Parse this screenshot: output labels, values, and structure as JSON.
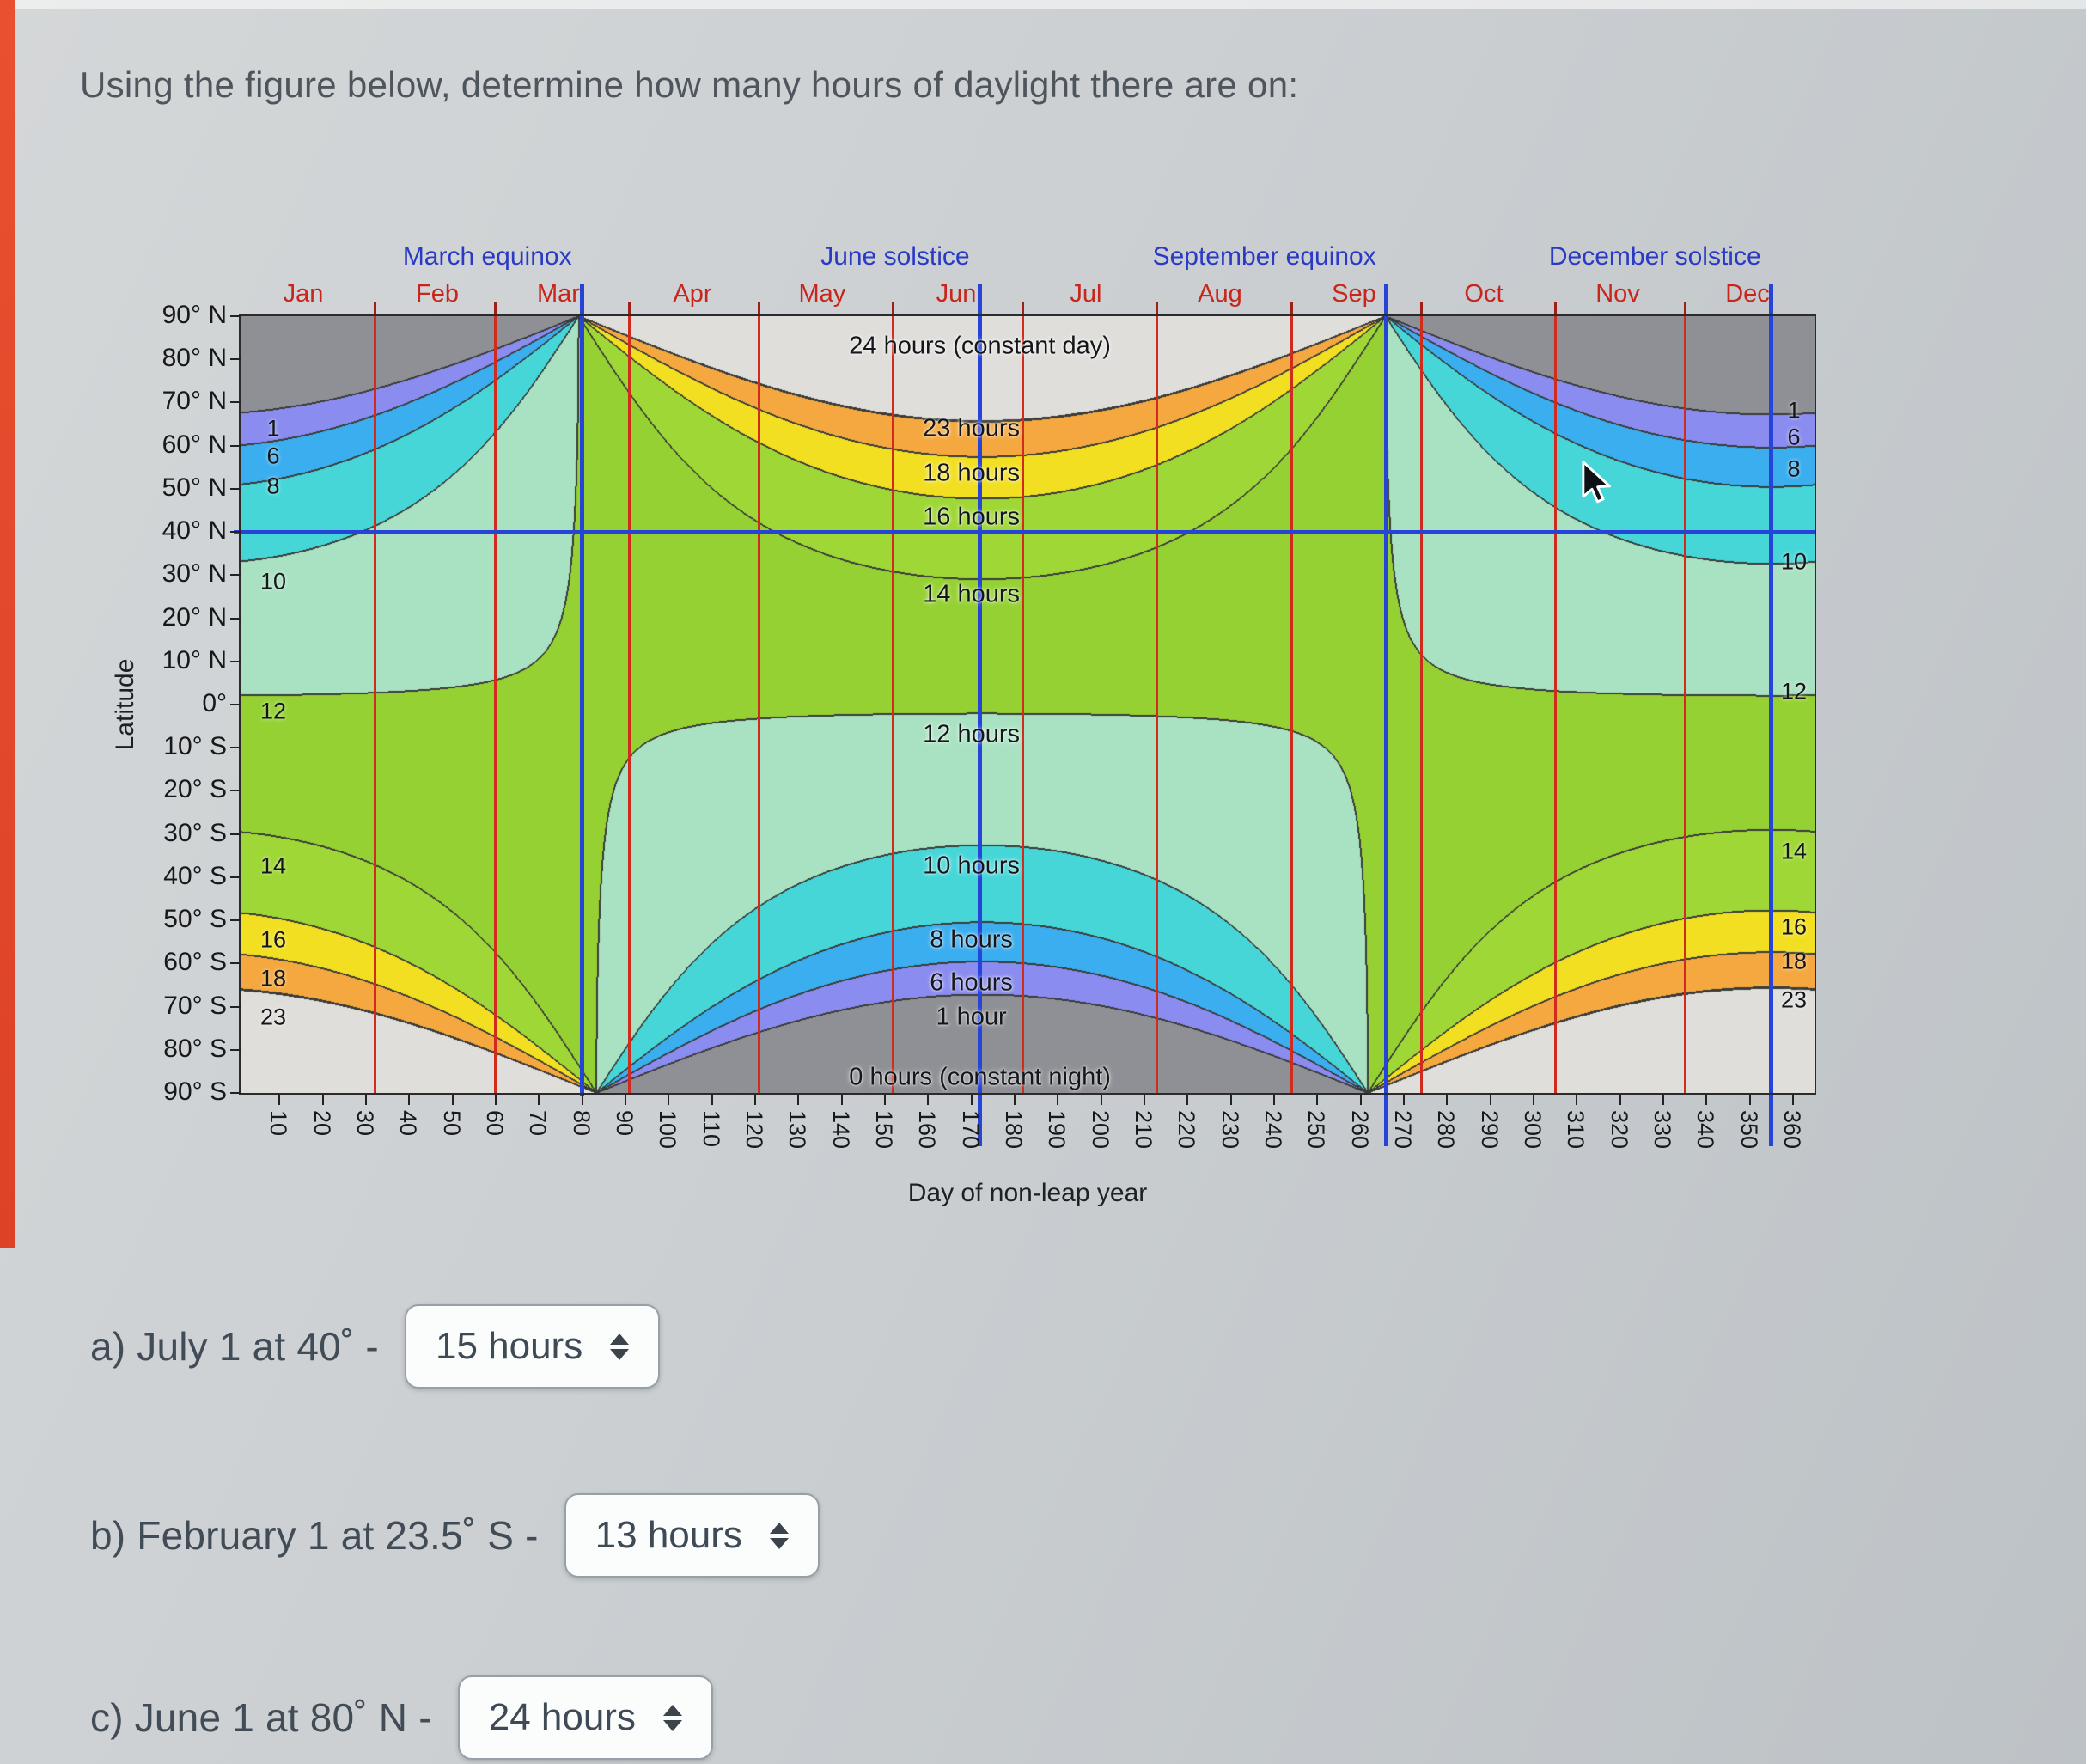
{
  "page": {
    "title": "Using the figure below, determine how many hours of daylight there are on:"
  },
  "chart": {
    "xlabel": "Day of non-leap year",
    "ylabel": "Latitude",
    "season_events": [
      {
        "label": "March equinox",
        "day": 80,
        "extend_below": false
      },
      {
        "label": "June solstice",
        "day": 172,
        "extend_below": true
      },
      {
        "label": "September equinox",
        "day": 266,
        "extend_below": true
      },
      {
        "label": "December solstice",
        "day": 355,
        "extend_below": true
      }
    ],
    "months": [
      {
        "label": "Jan",
        "start_day": 1
      },
      {
        "label": "Feb",
        "start_day": 32
      },
      {
        "label": "Mar",
        "start_day": 60
      },
      {
        "label": "Apr",
        "start_day": 91
      },
      {
        "label": "May",
        "start_day": 121
      },
      {
        "label": "Jun",
        "start_day": 152
      },
      {
        "label": "Jul",
        "start_day": 182
      },
      {
        "label": "Aug",
        "start_day": 213
      },
      {
        "label": "Sep",
        "start_day": 244
      },
      {
        "label": "Oct",
        "start_day": 274
      },
      {
        "label": "Nov",
        "start_day": 305
      },
      {
        "label": "Dec",
        "start_day": 335
      }
    ],
    "x_ticks": [
      10,
      20,
      30,
      40,
      50,
      60,
      70,
      80,
      90,
      100,
      110,
      120,
      130,
      140,
      150,
      160,
      170,
      180,
      190,
      200,
      210,
      220,
      230,
      240,
      250,
      260,
      270,
      280,
      290,
      300,
      310,
      320,
      330,
      340,
      350,
      360
    ],
    "lat_ticks": [
      {
        "label": "90° N",
        "lat": 90
      },
      {
        "label": "80° N",
        "lat": 80
      },
      {
        "label": "70° N",
        "lat": 70
      },
      {
        "label": "60° N",
        "lat": 60
      },
      {
        "label": "50° N",
        "lat": 50
      },
      {
        "label": "40° N",
        "lat": 40
      },
      {
        "label": "30° N",
        "lat": 30
      },
      {
        "label": "20° N",
        "lat": 20
      },
      {
        "label": "10° N",
        "lat": 10
      },
      {
        "label": "0°",
        "lat": 0
      },
      {
        "label": "10° S",
        "lat": -10
      },
      {
        "label": "20° S",
        "lat": -20
      },
      {
        "label": "30° S",
        "lat": -30
      },
      {
        "label": "40° S",
        "lat": -40
      },
      {
        "label": "50° S",
        "lat": -50
      },
      {
        "label": "60° S",
        "lat": -60
      },
      {
        "label": "70° S",
        "lat": -70
      },
      {
        "label": "80° S",
        "lat": -80
      },
      {
        "label": "90° S",
        "lat": -90
      }
    ],
    "hour_annotations": [
      {
        "label": "24 hours (constant day)",
        "day": 172,
        "lat": 83
      },
      {
        "label": "23 hours",
        "day": 170,
        "lat": 64
      },
      {
        "label": "18 hours",
        "day": 170,
        "lat": 53.5
      },
      {
        "label": "16 hours",
        "day": 170,
        "lat": 43.5
      },
      {
        "label": "14 hours",
        "day": 170,
        "lat": 25.5
      },
      {
        "label": "12 hours",
        "day": 170,
        "lat": -7
      },
      {
        "label": "10 hours",
        "day": 170,
        "lat": -37.5
      },
      {
        "label": "8 hours",
        "day": 170,
        "lat": -54.5
      },
      {
        "label": "6 hours",
        "day": 170,
        "lat": -64.5
      },
      {
        "label": "1 hour",
        "day": 170,
        "lat": -72.5
      },
      {
        "label": "0 hours (constant night)",
        "day": 172,
        "lat": -86.5
      }
    ],
    "left_edge_values": [
      {
        "label": "1",
        "lat": 64
      },
      {
        "label": "6",
        "lat": 57.5
      },
      {
        "label": "8",
        "lat": 50.5
      },
      {
        "label": "10",
        "lat": 28.5
      },
      {
        "label": "12",
        "lat": -1.5
      },
      {
        "label": "14",
        "lat": -37.5
      },
      {
        "label": "16",
        "lat": -54.5
      },
      {
        "label": "18",
        "lat": -63.5
      },
      {
        "label": "23",
        "lat": -72.5
      }
    ],
    "right_edge_values": [
      {
        "label": "1",
        "lat": 68
      },
      {
        "label": "6",
        "lat": 62
      },
      {
        "label": "8",
        "lat": 54.5
      },
      {
        "label": "10",
        "lat": 33
      },
      {
        "label": "12",
        "lat": 3
      },
      {
        "label": "14",
        "lat": -34
      },
      {
        "label": "16",
        "lat": -51.5
      },
      {
        "label": "18",
        "lat": -59.5
      },
      {
        "label": "23",
        "lat": -68.5
      }
    ],
    "highlight_latitude_deg": 40,
    "colors": {
      "month_label": "#c8251b",
      "month_line": "#d02c1e",
      "season_label": "#2a3ac4",
      "event_line": "#2644d8",
      "latitude_line": "#2644d8"
    }
  },
  "chart_data": {
    "type": "heatmap",
    "title": "Hours of daylight by latitude and day of non-leap year",
    "xlabel": "Day of non-leap year",
    "ylabel": "Latitude",
    "x_range_days": [
      1,
      365
    ],
    "y_range_latitude_deg": [
      -90,
      90
    ],
    "contour_levels_hours": [
      0,
      1,
      6,
      8,
      10,
      12,
      14,
      16,
      18,
      23,
      24
    ],
    "bands": [
      {
        "from_hours": 0,
        "to_hours": 1,
        "color": "#8f9095"
      },
      {
        "from_hours": 1,
        "to_hours": 6,
        "color": "#8a8cef"
      },
      {
        "from_hours": 6,
        "to_hours": 8,
        "color": "#3aaeef"
      },
      {
        "from_hours": 8,
        "to_hours": 10,
        "color": "#46d6d8"
      },
      {
        "from_hours": 10,
        "to_hours": 12,
        "color": "#a9e2c2"
      },
      {
        "from_hours": 12,
        "to_hours": 14,
        "color": "#95d133"
      },
      {
        "from_hours": 14,
        "to_hours": 16,
        "color": "#9fd736"
      },
      {
        "from_hours": 16,
        "to_hours": 18,
        "color": "#f2df22"
      },
      {
        "from_hours": 18,
        "to_hours": 23,
        "color": "#f4a83f"
      },
      {
        "from_hours": 23,
        "to_hours": 24,
        "color": "#edc7cf"
      },
      {
        "from_hours": 24,
        "to_hours": 24,
        "color": "#e0dedb"
      }
    ]
  },
  "questions": [
    {
      "label": "a) July 1 at 40˚ -",
      "answer": "15 hours"
    },
    {
      "label": "b) February 1 at 23.5˚ S -",
      "answer": "13 hours"
    },
    {
      "label": "c) June 1 at 80˚ N -",
      "answer": "24 hours"
    }
  ]
}
